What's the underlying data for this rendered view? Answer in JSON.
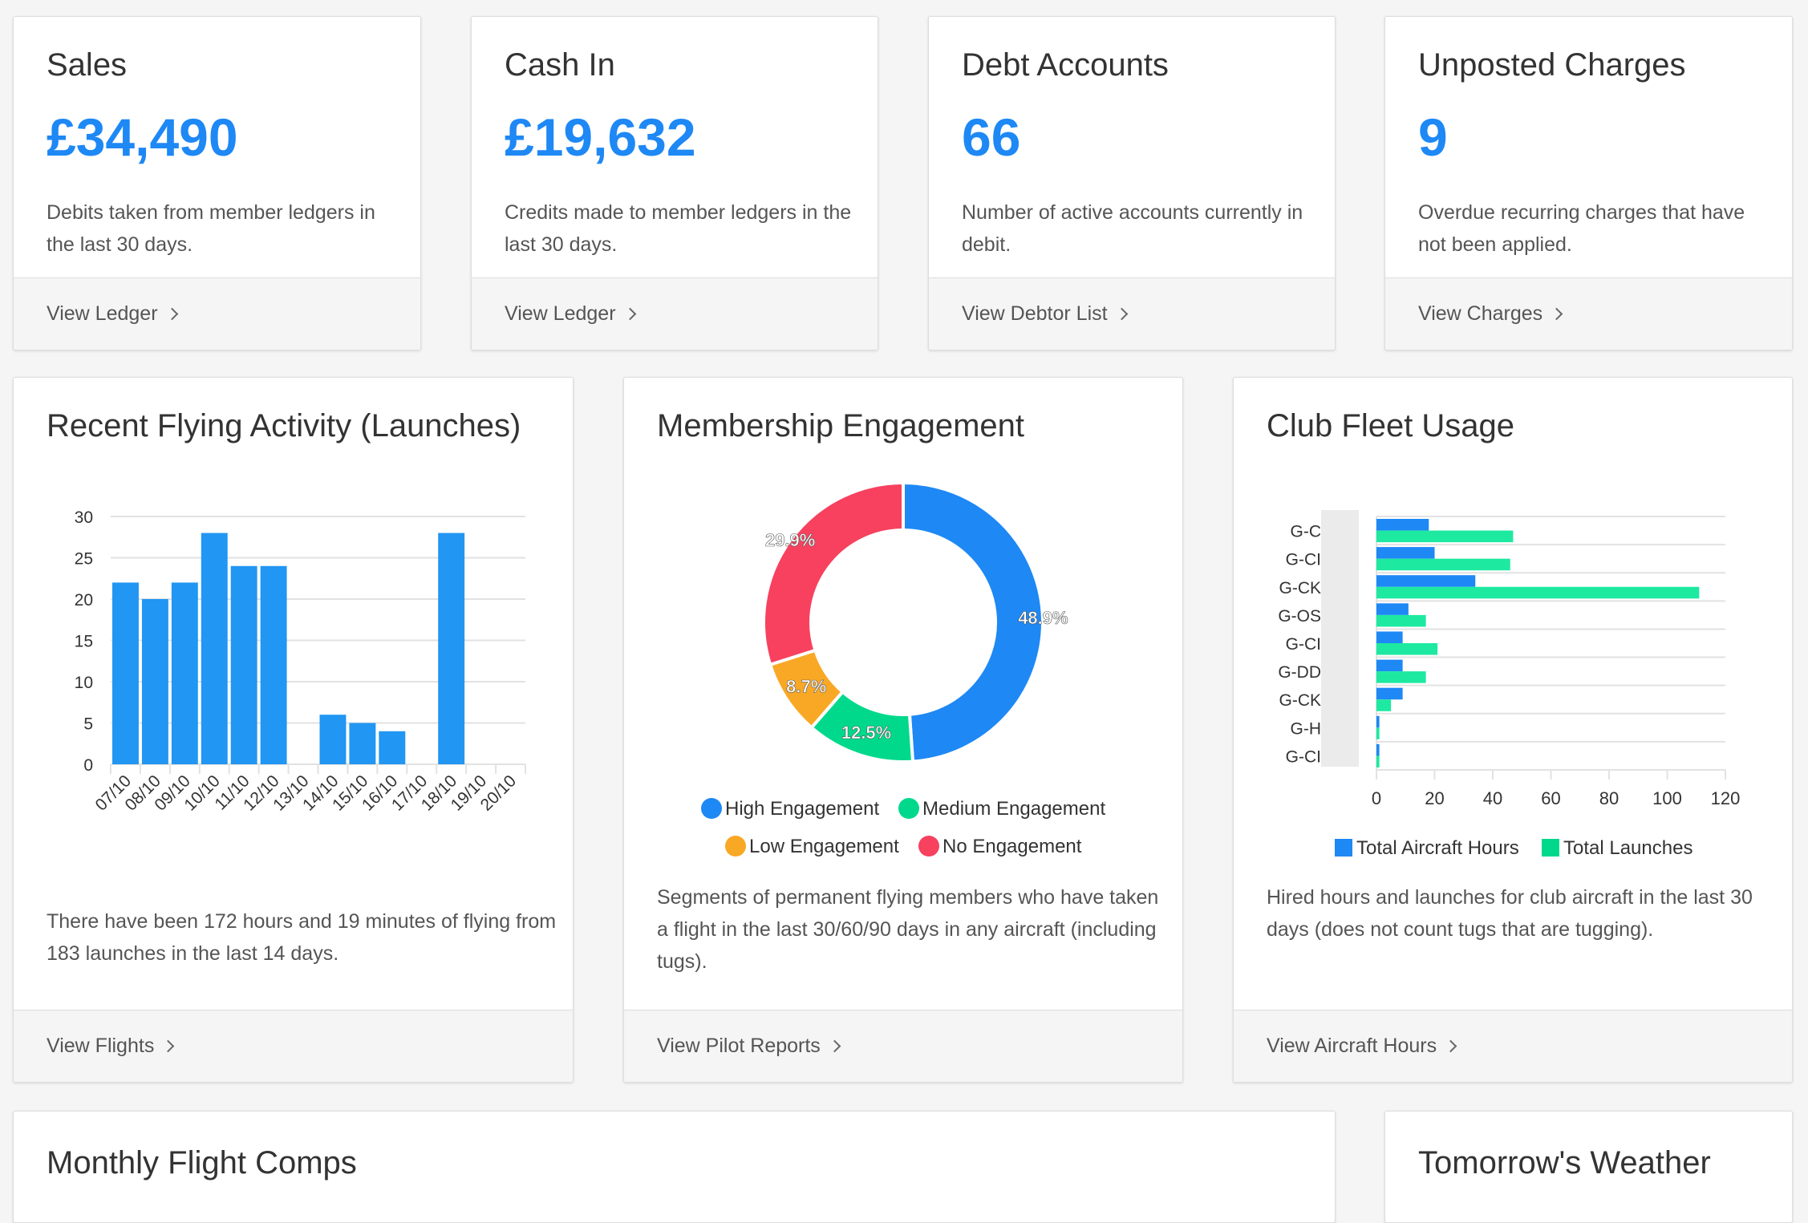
{
  "stats": [
    {
      "title": "Sales",
      "value": "£34,490",
      "desc": "Debits taken from member ledgers in the last 30 days.",
      "link": "View Ledger"
    },
    {
      "title": "Cash In",
      "value": "£19,632",
      "desc": "Credits made to member ledgers in the last 30 days.",
      "link": "View Ledger"
    },
    {
      "title": "Debt Accounts",
      "value": "66",
      "desc": "Number of active accounts currently in debit.",
      "link": "View Debtor List"
    },
    {
      "title": "Unposted Charges",
      "value": "9",
      "desc": "Overdue recurring charges that have not been applied.",
      "link": "View Charges"
    }
  ],
  "flying": {
    "title": "Recent Flying Activity (Launches)",
    "desc": "There have been 172 hours and 19 minutes of flying from 183 launches in the last 14 days.",
    "link": "View Flights"
  },
  "engagement": {
    "title": "Membership Engagement",
    "desc": "Segments of permanent flying members who have taken a flight in the last 30/60/90 days in any aircraft (including tugs).",
    "link": "View Pilot Reports"
  },
  "fleet": {
    "title": "Club Fleet Usage",
    "desc": "Hired hours and launches for club aircraft in the last 30 days (does not count tugs that are tugging).",
    "link": "View Aircraft Hours"
  },
  "bottom": {
    "comps_title": "Monthly Flight Comps",
    "weather_title": "Tomorrow's Weather"
  },
  "chart_data": [
    {
      "type": "bar",
      "categories": [
        "07/10",
        "08/10",
        "09/10",
        "10/10",
        "11/10",
        "12/10",
        "13/10",
        "14/10",
        "15/10",
        "16/10",
        "17/10",
        "18/10",
        "19/10",
        "20/10"
      ],
      "values": [
        22,
        20,
        22,
        28,
        24,
        24,
        0,
        6,
        5,
        4,
        0,
        28,
        0,
        0
      ],
      "ylim": [
        0,
        30
      ],
      "yticks": [
        0,
        5,
        10,
        15,
        20,
        25,
        30
      ],
      "grid": true,
      "color": "#2196f3"
    },
    {
      "type": "pie",
      "donut": true,
      "categories": [
        "High Engagement",
        "Medium Engagement",
        "Low Engagement",
        "No Engagement"
      ],
      "values": [
        48.9,
        12.5,
        8.7,
        29.9
      ],
      "labels": [
        "48.9%",
        "12.5%",
        "8.7%",
        "29.9%"
      ],
      "colors": [
        "#1e88f5",
        "#00d98b",
        "#f9a825",
        "#f7415f"
      ],
      "legend": "bottom"
    },
    {
      "type": "bar",
      "orientation": "horizontal",
      "categories": [
        "G-C",
        "G-CI",
        "G-CK",
        "G-OS",
        "G-CI",
        "G-DD",
        "G-CK",
        "G-H",
        "G-CI"
      ],
      "series": [
        {
          "name": "Total Aircraft Hours",
          "values": [
            18,
            20,
            34,
            11,
            9,
            9,
            9,
            1,
            1
          ],
          "color": "#1e88f5"
        },
        {
          "name": "Total Launches",
          "values": [
            47,
            46,
            111,
            17,
            21,
            17,
            5,
            1,
            1
          ],
          "color": "#1de9a0"
        }
      ],
      "xlim": [
        0,
        120
      ],
      "xticks": [
        0,
        20,
        40,
        60,
        80,
        100,
        120
      ],
      "grid": true,
      "legend": "bottom"
    }
  ]
}
